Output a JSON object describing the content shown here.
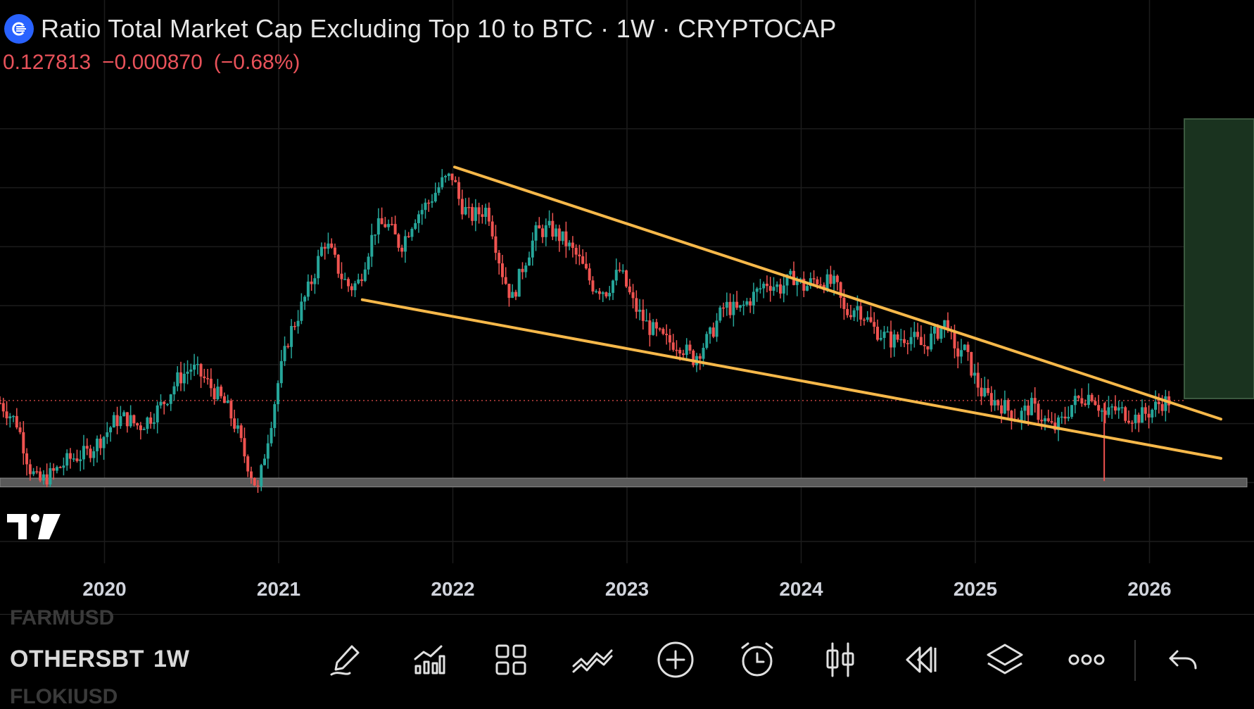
{
  "header": {
    "title": "Ratio Total Market Cap Excluding Top 10 to BTC · 1W · CRYPTOCAP",
    "price": "0.127813",
    "change": "−0.000870",
    "change_pct": "(−0.68%)",
    "change_color": "#e8525a"
  },
  "colors": {
    "background": "#000000",
    "grid": "#1c1c1c",
    "up": "#26a69a",
    "down": "#ef5350",
    "trendline": "#f6b84a",
    "support_zone": "#5a5a5a",
    "target_box": "#1a331f",
    "price_line": "#ef5350",
    "axis_text": "#d1d4dc"
  },
  "chart_data": {
    "type": "candlestick",
    "title": "Ratio Total Market Cap Excluding Top 10 to BTC",
    "interval": "1W",
    "exchange": "CRYPTOCAP",
    "x_tick_labels": [
      "2020",
      "2021",
      "2022",
      "2023",
      "2024",
      "2025",
      "2026"
    ],
    "x_range": [
      2019.4,
      2026.6
    ],
    "y_range": [
      0.075,
      0.235
    ],
    "last_price": 0.1278,
    "series": [
      {
        "name": "weekly close",
        "x": [
          2019.4,
          2019.5,
          2019.57,
          2019.62,
          2019.7,
          2019.8,
          2019.9,
          2020.0,
          2020.06,
          2020.12,
          2020.2,
          2020.28,
          2020.35,
          2020.42,
          2020.5,
          2020.56,
          2020.63,
          2020.7,
          2020.76,
          2020.8,
          2020.88,
          2020.92,
          2020.96,
          2021.0,
          2021.06,
          2021.12,
          2021.2,
          2021.26,
          2021.3,
          2021.36,
          2021.41,
          2021.46,
          2021.5,
          2021.55,
          2021.62,
          2021.7,
          2021.78,
          2021.86,
          2021.94,
          2022.0,
          2022.04,
          2022.1,
          2022.2,
          2022.28,
          2022.34,
          2022.4,
          2022.48,
          2022.56,
          2022.64,
          2022.72,
          2022.8,
          2022.88,
          2022.96,
          2023.04,
          2023.12,
          2023.22,
          2023.3,
          2023.38,
          2023.42,
          2023.48,
          2023.56,
          2023.64,
          2023.72,
          2023.8,
          2023.88,
          2023.96,
          2024.02,
          2024.08,
          2024.14,
          2024.2,
          2024.25,
          2024.32,
          2024.42,
          2024.52,
          2024.62,
          2024.7,
          2024.78,
          2024.84,
          2024.88,
          2024.93,
          2025.0,
          2025.04,
          2025.1,
          2025.16,
          2025.24,
          2025.32,
          2025.4,
          2025.45,
          2025.5,
          2025.56,
          2025.62,
          2025.67,
          2025.71,
          2025.75,
          2025.78,
          2025.84,
          2025.92,
          2026.0,
          2026.06,
          2026.12
        ],
        "y": [
          0.127,
          0.12,
          0.105,
          0.1,
          0.103,
          0.108,
          0.11,
          0.116,
          0.121,
          0.122,
          0.119,
          0.123,
          0.128,
          0.135,
          0.139,
          0.136,
          0.131,
          0.126,
          0.118,
          0.11,
          0.097,
          0.11,
          0.122,
          0.135,
          0.15,
          0.158,
          0.17,
          0.182,
          0.178,
          0.17,
          0.166,
          0.168,
          0.176,
          0.186,
          0.188,
          0.18,
          0.19,
          0.195,
          0.202,
          0.204,
          0.195,
          0.19,
          0.193,
          0.172,
          0.162,
          0.173,
          0.185,
          0.186,
          0.182,
          0.176,
          0.167,
          0.165,
          0.172,
          0.16,
          0.153,
          0.148,
          0.147,
          0.142,
          0.145,
          0.15,
          0.16,
          0.158,
          0.163,
          0.168,
          0.166,
          0.17,
          0.166,
          0.169,
          0.168,
          0.167,
          0.157,
          0.16,
          0.152,
          0.148,
          0.15,
          0.146,
          0.151,
          0.155,
          0.143,
          0.146,
          0.135,
          0.13,
          0.128,
          0.126,
          0.122,
          0.126,
          0.121,
          0.118,
          0.121,
          0.127,
          0.129,
          0.13,
          0.126,
          0.122,
          0.125,
          0.124,
          0.122,
          0.124,
          0.127,
          0.1278
        ]
      }
    ],
    "annotations": [
      {
        "type": "trendline",
        "label": "upper",
        "points": [
          [
            2022.01,
            0.207
          ],
          [
            2026.41,
            0.1215
          ]
        ]
      },
      {
        "type": "trendline",
        "label": "lower",
        "points": [
          [
            2021.48,
            0.162
          ],
          [
            2026.41,
            0.1082
          ]
        ]
      },
      {
        "type": "zone",
        "label": "support",
        "y_range": [
          0.0985,
          0.1015
        ]
      },
      {
        "type": "box",
        "label": "target",
        "x_range": [
          2026.2,
          2026.6
        ],
        "y_range": [
          0.1285,
          0.2233
        ]
      },
      {
        "type": "hline",
        "label": "last price",
        "y": 0.1278
      }
    ]
  },
  "toolbar": {
    "ghost_above": "FARMUSD",
    "symbol": "OTHERSBT",
    "interval": "1W",
    "ghost_below": "FLOKIUSD",
    "tools": [
      "pen-icon",
      "indicators-icon",
      "grid-icon",
      "pattern-icon",
      "add-icon",
      "alarm-icon",
      "candles-icon",
      "replay-icon",
      "layers-icon",
      "more-icon",
      "undo-icon"
    ]
  }
}
